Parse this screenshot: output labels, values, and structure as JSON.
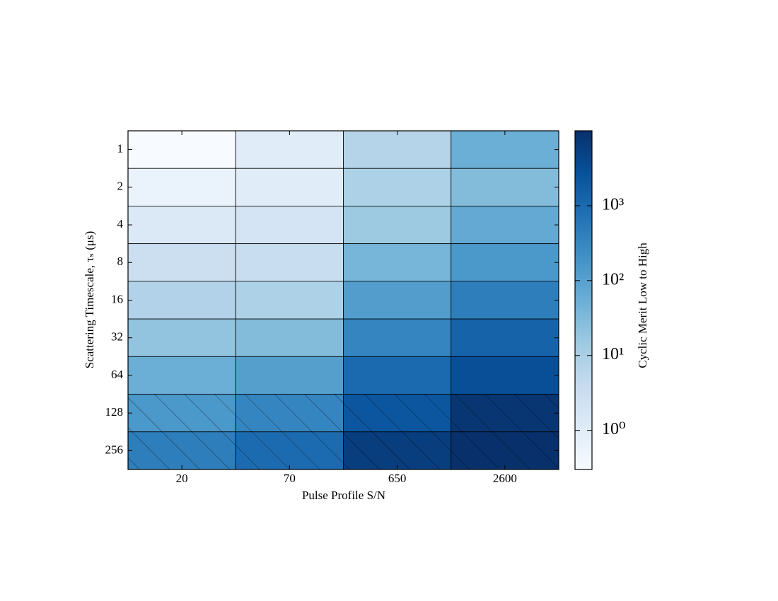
{
  "chart_data": {
    "type": "heatmap",
    "xlabel": "Pulse Profile S/N",
    "ylabel": "Scattering Timescale, τₛ (μs)",
    "colorbar_label": "Cyclic Merit Low to High",
    "x": [
      "20",
      "70",
      "650",
      "2600"
    ],
    "y": [
      "1",
      "2",
      "4",
      "8",
      "16",
      "32",
      "64",
      "128",
      "256"
    ],
    "values": [
      [
        0.3,
        1,
        7,
        55
      ],
      [
        0.6,
        1,
        9,
        30
      ],
      [
        1.3,
        1.9,
        15,
        70
      ],
      [
        3,
        3.5,
        40,
        150
      ],
      [
        8,
        9,
        120,
        450
      ],
      [
        20,
        30,
        330,
        1300
      ],
      [
        55,
        110,
        1000,
        3000
      ],
      [
        150,
        330,
        2200,
        8000
      ],
      [
        450,
        950,
        6000,
        10000
      ]
    ],
    "hatch": [
      false,
      false,
      false,
      false,
      false,
      false,
      false,
      true,
      true
    ],
    "color_scale": "log",
    "clim": [
      0.3,
      10000
    ],
    "cticks": [
      {
        "value": 1,
        "label": "10⁰"
      },
      {
        "value": 10,
        "label": "10¹"
      },
      {
        "value": 100,
        "label": "10²"
      },
      {
        "value": 1000,
        "label": "10³"
      }
    ],
    "colormap": [
      "#f7fbff",
      "#deebf7",
      "#c6dbef",
      "#9ecae1",
      "#6baed6",
      "#4292c6",
      "#2171b5",
      "#08519c",
      "#08306b"
    ]
  }
}
